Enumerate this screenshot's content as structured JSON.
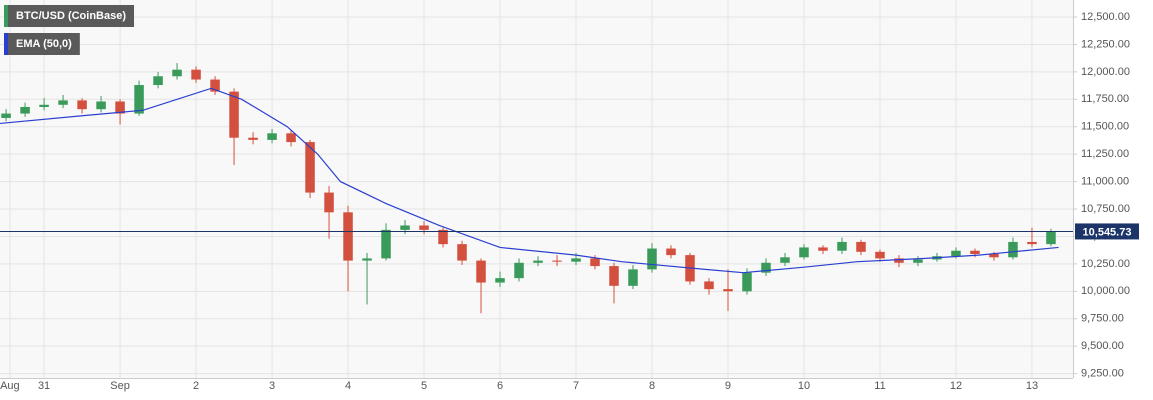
{
  "chart_data": {
    "type": "candlestick",
    "series": [
      {
        "name": "BTC/USD (CoinBase)",
        "type": "candlestick",
        "up_color": "#3a9a5a",
        "down_color": "#d4503e",
        "x": [
          -0.5,
          -0.25,
          0,
          0.25,
          0.5,
          0.75,
          1,
          1.25,
          1.5,
          1.75,
          2,
          2.25,
          2.5,
          2.75,
          3,
          3.25,
          3.5,
          3.75,
          4,
          4.25,
          4.5,
          4.75,
          5,
          5.25,
          5.5,
          5.75,
          6,
          6.25,
          6.5,
          6.75,
          7,
          7.25,
          7.5,
          7.75,
          8,
          8.25,
          8.5,
          8.75,
          9,
          9.25,
          9.5,
          9.75,
          10,
          10.25,
          10.5,
          10.75,
          11,
          11.25,
          11.5,
          11.75,
          12,
          12.25,
          12.5,
          12.75,
          13,
          13.25
        ],
        "open": [
          11580,
          11620,
          11680,
          11700,
          11740,
          11660,
          11730,
          11620,
          11880,
          11960,
          12020,
          11930,
          11820,
          11400,
          11380,
          11440,
          11360,
          10900,
          10720,
          10280,
          10300,
          10560,
          10600,
          10560,
          10430,
          10280,
          10080,
          10120,
          10260,
          10280,
          10270,
          10300,
          10230,
          10050,
          10200,
          10390,
          10330,
          10090,
          10020,
          10000,
          10170,
          10260,
          10310,
          10400,
          10370,
          10450,
          10360,
          10300,
          10260,
          10290,
          10320,
          10370,
          10340,
          10310,
          10450,
          10430
        ],
        "high": [
          11660,
          11720,
          11760,
          11790,
          11760,
          11780,
          11750,
          11920,
          12000,
          12080,
          12050,
          11960,
          11850,
          11450,
          11480,
          11470,
          11380,
          10960,
          10780,
          10350,
          10620,
          10650,
          10640,
          10580,
          10460,
          10300,
          10180,
          10300,
          10320,
          10330,
          10350,
          10330,
          10260,
          10240,
          10440,
          10420,
          10350,
          10120,
          10200,
          10210,
          10300,
          10350,
          10430,
          10420,
          10490,
          10470,
          10380,
          10330,
          10320,
          10350,
          10400,
          10390,
          10360,
          10490,
          10580,
          10570
        ],
        "low": [
          11550,
          11590,
          11650,
          11670,
          11620,
          11630,
          11520,
          11600,
          11850,
          11930,
          11900,
          11790,
          11150,
          11340,
          11350,
          11320,
          10850,
          10480,
          10000,
          9880,
          10280,
          10520,
          10520,
          10400,
          10240,
          9800,
          10040,
          10090,
          10230,
          10230,
          10240,
          10200,
          9890,
          10020,
          10170,
          10300,
          10060,
          9970,
          9820,
          9970,
          10140,
          10230,
          10290,
          10340,
          10340,
          10330,
          10270,
          10220,
          10230,
          10270,
          10300,
          10310,
          10280,
          10290,
          10400,
          10410
        ],
        "close": [
          11620,
          11680,
          11700,
          11740,
          11660,
          11730,
          11620,
          11880,
          11960,
          12020,
          11930,
          11820,
          11400,
          11380,
          11440,
          11360,
          10900,
          10720,
          10280,
          10300,
          10560,
          10600,
          10560,
          10430,
          10280,
          10080,
          10120,
          10260,
          10280,
          10270,
          10300,
          10230,
          10050,
          10200,
          10390,
          10330,
          10090,
          10020,
          10000,
          10170,
          10260,
          10310,
          10400,
          10370,
          10450,
          10360,
          10300,
          10260,
          10290,
          10320,
          10370,
          10340,
          10310,
          10450,
          10430,
          10546
        ]
      },
      {
        "name": "EMA (50,0)",
        "type": "line",
        "color": "#2a3fd0",
        "x": [
          -0.58,
          0.5,
          1.3,
          2.2,
          2.6,
          3.2,
          3.6,
          3.9,
          4.5,
          5.2,
          6.0,
          7.0,
          7.6,
          8.7,
          9.2,
          10.0,
          10.7,
          11.6,
          12.3,
          13.35
        ],
        "values": [
          11530,
          11600,
          11650,
          11850,
          11750,
          11500,
          11250,
          11000,
          10800,
          10600,
          10400,
          10330,
          10270,
          10200,
          10170,
          10220,
          10270,
          10300,
          10330,
          10400
        ]
      }
    ],
    "last_price": {
      "value": 10545.73,
      "label": "10,545.73"
    },
    "xlim": [
      -0.58,
      13.54
    ],
    "xticks": [
      {
        "value": -0.45,
        "label": "Aug"
      },
      {
        "value": 0,
        "label": "31"
      },
      {
        "value": 1,
        "label": "Sep"
      },
      {
        "value": 2,
        "label": "2"
      },
      {
        "value": 3,
        "label": "3"
      },
      {
        "value": 4,
        "label": "4"
      },
      {
        "value": 5,
        "label": "5"
      },
      {
        "value": 6,
        "label": "6"
      },
      {
        "value": 7,
        "label": "7"
      },
      {
        "value": 8,
        "label": "8"
      },
      {
        "value": 9,
        "label": "9"
      },
      {
        "value": 10,
        "label": "10"
      },
      {
        "value": 11,
        "label": "11"
      },
      {
        "value": 12,
        "label": "12"
      },
      {
        "value": 13,
        "label": "13"
      }
    ],
    "ylim": [
      9210,
      12655
    ],
    "yticks": [
      {
        "value": 12500,
        "label": "12,500.00"
      },
      {
        "value": 12250,
        "label": "12,250.00"
      },
      {
        "value": 12000,
        "label": "12,000.00"
      },
      {
        "value": 11750,
        "label": "11,750.00"
      },
      {
        "value": 11500,
        "label": "11,500.00"
      },
      {
        "value": 11250,
        "label": "11,250.00"
      },
      {
        "value": 11000,
        "label": "11,000.00"
      },
      {
        "value": 10750,
        "label": "10,750.00"
      },
      {
        "value": 10500,
        "label": "10,500.00"
      },
      {
        "value": 10250,
        "label": "10,250.00"
      },
      {
        "value": 10000,
        "label": "10,000.00"
      },
      {
        "value": 9750,
        "label": "9,750.00"
      },
      {
        "value": 9500,
        "label": "9,500.00"
      },
      {
        "value": 9250,
        "label": "9,250.00"
      }
    ],
    "grid": true
  }
}
